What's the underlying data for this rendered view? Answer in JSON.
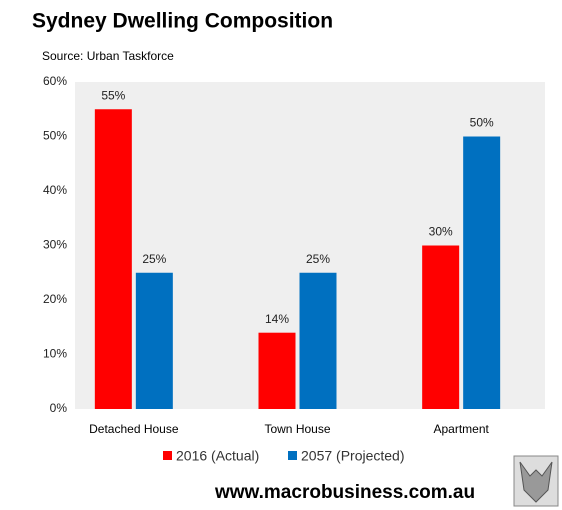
{
  "chart_data": {
    "type": "bar",
    "title": "Sydney Dwelling Composition",
    "subtitle": "Source: Urban Taskforce",
    "categories": [
      "Detached House",
      "Town House",
      "Apartment"
    ],
    "series": [
      {
        "name": "2016 (Actual)",
        "color": "#ff0000",
        "values": [
          55,
          14,
          30
        ],
        "value_labels": [
          "55%",
          "14%",
          "30%"
        ]
      },
      {
        "name": "2057 (Projected)",
        "color": "#0070c0",
        "values": [
          25,
          25,
          50
        ],
        "value_labels": [
          "25%",
          "25%",
          "50%"
        ]
      }
    ],
    "ylim": [
      0,
      60
    ],
    "yticks": [
      {
        "value": 0,
        "label": "0%"
      },
      {
        "value": 10,
        "label": "10%"
      },
      {
        "value": 20,
        "label": "20%"
      },
      {
        "value": 30,
        "label": "30%"
      },
      {
        "value": 40,
        "label": "40%"
      },
      {
        "value": 50,
        "label": "50%"
      },
      {
        "value": 60,
        "label": "60%"
      }
    ],
    "grid": false,
    "footer": "www.macrobusiness.com.au"
  }
}
